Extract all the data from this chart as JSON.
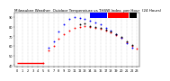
{
  "background_color": "#ffffff",
  "grid_color": "#aaaaaa",
  "xlim": [
    -0.5,
    23.5
  ],
  "ylim": [
    38,
    95
  ],
  "yticks": [
    40,
    50,
    60,
    70,
    80,
    90
  ],
  "hours": [
    0,
    1,
    2,
    3,
    4,
    5,
    6,
    7,
    8,
    9,
    10,
    11,
    12,
    13,
    14,
    15,
    16,
    17,
    18,
    19,
    20,
    21,
    22,
    23
  ],
  "temp_outdoor": [
    42,
    42,
    42,
    42,
    42,
    42,
    55,
    60,
    67,
    72,
    76,
    79,
    80,
    81,
    80,
    79,
    78,
    76,
    74,
    71,
    68,
    64,
    60,
    57
  ],
  "thsw_index": [
    null,
    null,
    null,
    null,
    null,
    null,
    58,
    65,
    75,
    82,
    88,
    90,
    89,
    88,
    86,
    84,
    82,
    79,
    76,
    72,
    68,
    63,
    58,
    null
  ],
  "heat_index": [
    null,
    null,
    null,
    null,
    null,
    null,
    null,
    null,
    null,
    null,
    null,
    null,
    82,
    83,
    81,
    80,
    79,
    77,
    75,
    72,
    69,
    65,
    61,
    null
  ],
  "temp_color": "#ff0000",
  "thsw_color": "#0000ff",
  "heat_color": "#000000",
  "marker_size": 1.8,
  "title_fontsize": 3.0,
  "tick_fontsize": 2.5,
  "line_y": 42,
  "line_x_start": 0,
  "line_x_end": 5
}
